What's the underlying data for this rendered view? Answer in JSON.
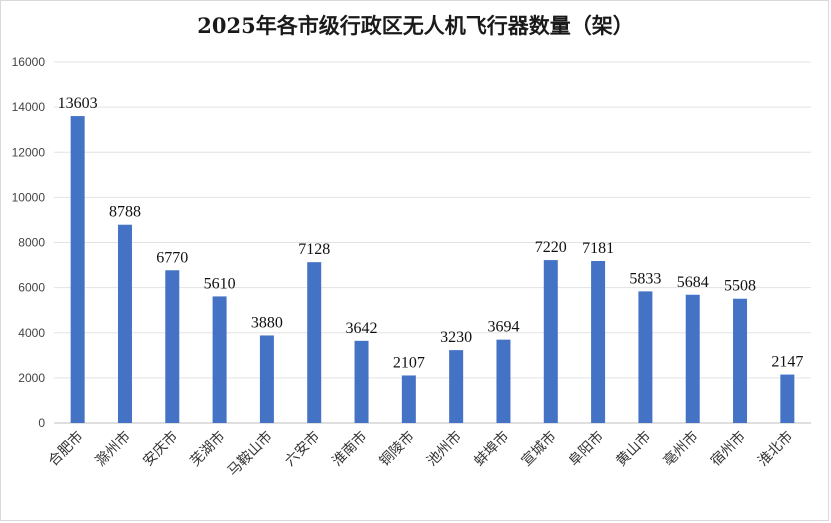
{
  "chart_data": {
    "type": "bar",
    "title": "2025年各市级行政区无人机飞行器数量（架）",
    "xlabel": "",
    "ylabel": "",
    "categories": [
      "合肥市",
      "滁州市",
      "安庆市",
      "芜湖市",
      "马鞍山市",
      "六安市",
      "淮南市",
      "铜陵市",
      "池州市",
      "蚌埠市",
      "宣城市",
      "阜阳市",
      "黄山市",
      "亳州市",
      "宿州市",
      "淮北市"
    ],
    "values": [
      13603,
      8788,
      6770,
      5610,
      3880,
      7128,
      3642,
      2107,
      3230,
      3694,
      7220,
      7181,
      5833,
      5684,
      5508,
      2147
    ],
    "ylim": [
      0,
      16000
    ],
    "yticks": [
      0,
      2000,
      4000,
      6000,
      8000,
      10000,
      12000,
      14000,
      16000
    ],
    "grid": true,
    "bar_color": "#4472C4"
  }
}
